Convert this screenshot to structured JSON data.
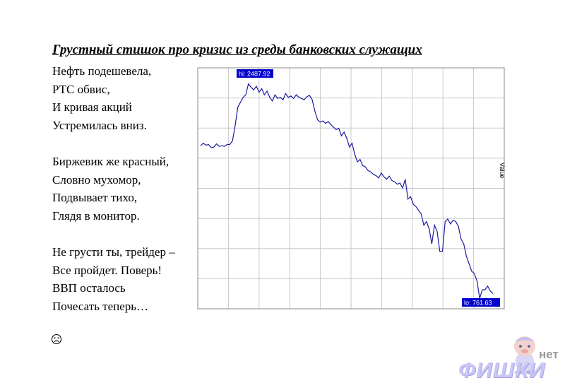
{
  "title": "Грустный стишок про кризис из среды банковских служащих",
  "poem": {
    "stanza1": [
      "Нефть подешевела,",
      "РТС обвис,",
      "И кривая акций",
      "Устремилась вниз."
    ],
    "stanza2": [
      "Биржевик же красный,",
      "Словно мухомор,",
      "Подвывает тихо,",
      "Глядя в монитор."
    ],
    "stanza3": [
      "Не грусти ты, трейдер –",
      "Все пройдет. Поверь!",
      "ВВП осталось",
      "Почесать теперь…"
    ]
  },
  "sad_face_icon": "sad-face-icon",
  "watermark": {
    "prefix": "нет",
    "brand": "ФИШКИ"
  },
  "colors": {
    "line": "#1a1aa0",
    "grid": "#c8c8c8",
    "label_bg": "#0000cc",
    "label_text": "#ffffff"
  },
  "chart_data": {
    "type": "line",
    "title": "",
    "ylabel": "Value",
    "grid": true,
    "hi_label": "hi: 2487.92",
    "lo_label": "lo: 761.63",
    "hi": 2487.92,
    "lo": 761.63,
    "ylim": [
      700,
      2600
    ],
    "series": [
      {
        "values": [
          1990,
          2010,
          1995,
          2000,
          1975,
          1980,
          2005,
          1985,
          1990,
          1985,
          2000,
          2000,
          2030,
          2150,
          2300,
          2340,
          2380,
          2400,
          2487.92,
          2460,
          2440,
          2470,
          2420,
          2450,
          2400,
          2430,
          2380,
          2350,
          2400,
          2370,
          2380,
          2360,
          2410,
          2380,
          2390,
          2370,
          2400,
          2380,
          2370,
          2360,
          2385,
          2395,
          2360,
          2270,
          2200,
          2180,
          2190,
          2170,
          2185,
          2160,
          2140,
          2120,
          2130,
          2070,
          2100,
          2050,
          1980,
          2010,
          1920,
          1860,
          1880,
          1830,
          1820,
          1790,
          1780,
          1760,
          1750,
          1730,
          1770,
          1740,
          1720,
          1745,
          1710,
          1700,
          1680,
          1690,
          1650,
          1720,
          1560,
          1580,
          1520,
          1500,
          1470,
          1440,
          1350,
          1380,
          1320,
          1200,
          1350,
          1300,
          1140,
          1140,
          1380,
          1400,
          1360,
          1390,
          1380,
          1340,
          1240,
          1200,
          1100,
          1040,
          980,
          960,
          900,
          761.63,
          830,
          830,
          860,
          820,
          800
        ]
      }
    ]
  }
}
